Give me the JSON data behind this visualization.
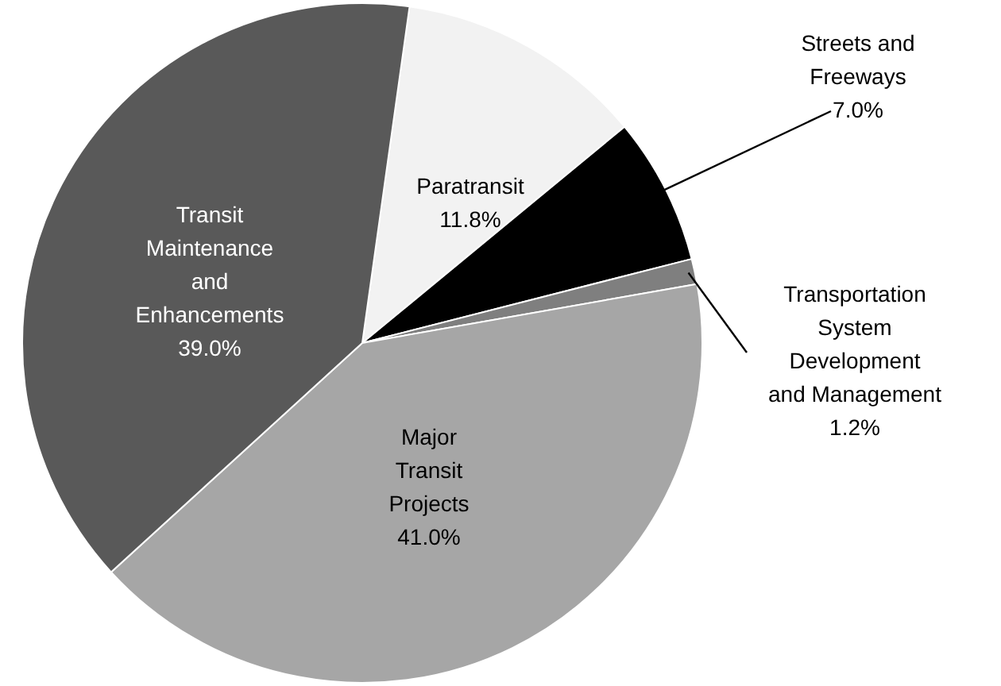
{
  "chart_data": {
    "type": "pie",
    "categories": [
      "Paratransit",
      "Streets and Freeways",
      "Transportation System Development and Management",
      "Major Transit Projects",
      "Transit Maintenance and Enhancements"
    ],
    "values": [
      11.8,
      7.0,
      1.2,
      41.0,
      39.0
    ],
    "colors": [
      "#f2f2f2",
      "#000000",
      "#7f7f7f",
      "#a6a6a6",
      "#595959"
    ],
    "value_labels": [
      "11.8%",
      "7.0%",
      "1.2%",
      "41.0%",
      "39.0%"
    ]
  }
}
